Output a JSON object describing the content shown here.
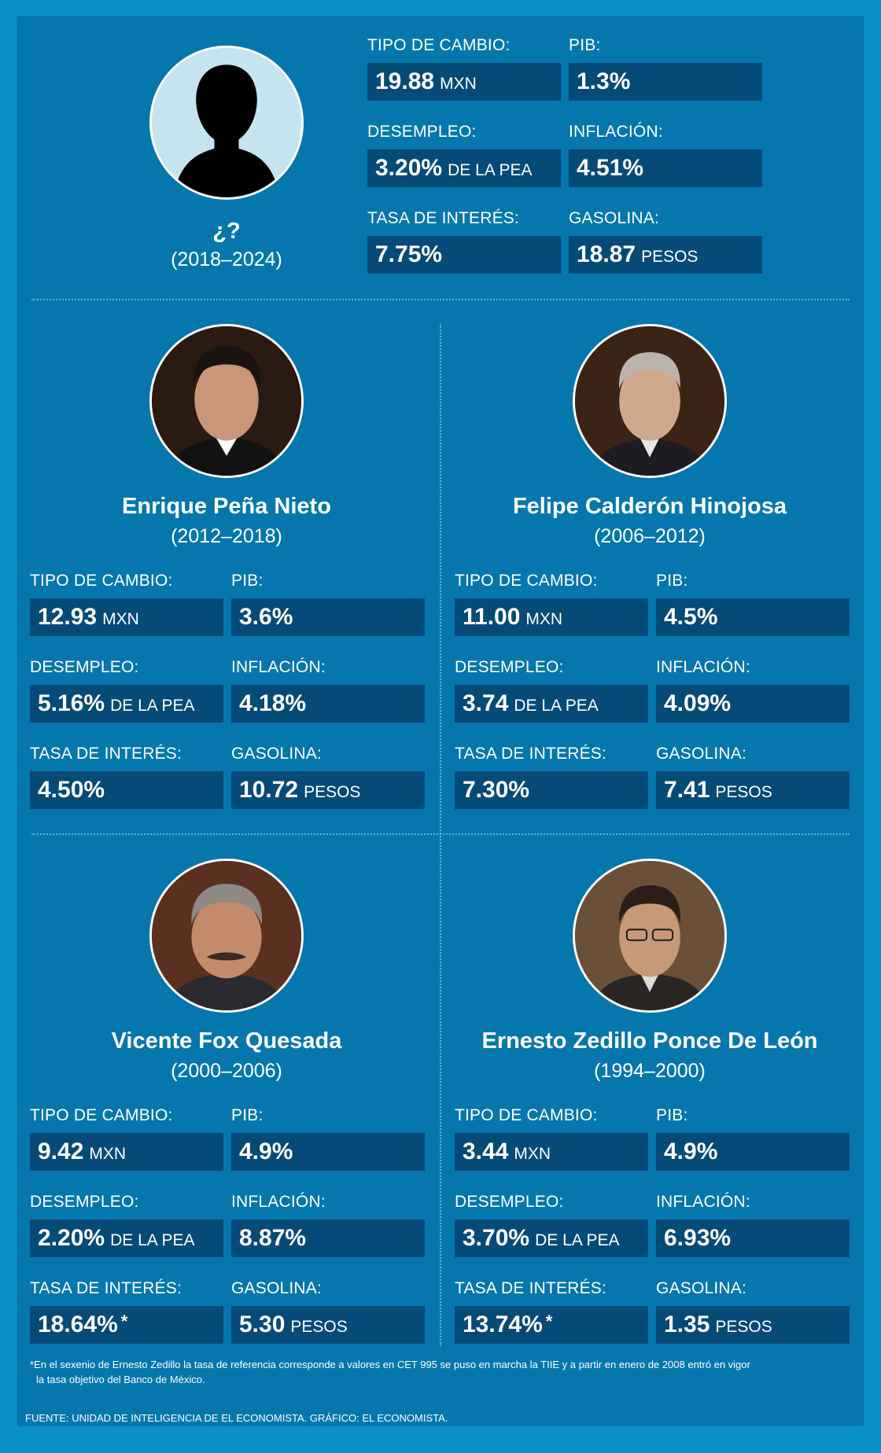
{
  "labels": {
    "exchange": "TIPO DE CAMBIO:",
    "gdp": "PIB:",
    "unemployment": "DESEMPLEO:",
    "inflation": "INFLACIÓN:",
    "interest": "TASA DE INTERÉS:",
    "gasoline": "GASOLINA:"
  },
  "units": {
    "mxn": "MXN",
    "pea": "DE LA PEA",
    "pesos": "PESOS"
  },
  "presidents": [
    {
      "name": "¿?",
      "years": "(2018–2024)",
      "exchange": "19.88",
      "gdp": "1.3%",
      "unemployment": "3.20%",
      "inflation": "4.51%",
      "interest": "7.75%",
      "gasoline": "18.87"
    },
    {
      "name": "Enrique Peña Nieto",
      "years": "(2012–2018)",
      "exchange": "12.93",
      "gdp": "3.6%",
      "unemployment": "5.16%",
      "inflation": "4.18%",
      "interest": "4.50%",
      "gasoline": "10.72"
    },
    {
      "name": "Felipe Calderón Hinojosa",
      "years": "(2006–2012)",
      "exchange": "11.00",
      "gdp": "4.5%",
      "unemployment": "3.74",
      "inflation": "4.09%",
      "interest": "7.30%",
      "gasoline": "7.41"
    },
    {
      "name": "Vicente Fox Quesada",
      "years": "(2000–2006)",
      "exchange": "9.42",
      "gdp": "4.9%",
      "unemployment": "2.20%",
      "inflation": "8.87%",
      "interest": "18.64%",
      "interest_mark": "*",
      "gasoline": "5.30"
    },
    {
      "name": "Ernesto Zedillo Ponce De León",
      "years": "(1994–2000)",
      "exchange": "3.44",
      "gdp": "4.9%",
      "unemployment": "3.70%",
      "inflation": "6.93%",
      "interest": "13.74%",
      "interest_mark": "*",
      "gasoline": "1.35"
    }
  ],
  "footnote_line1": "*En el sexenio de Ernesto Zedillo la tasa de referencia corresponde a valores en CET 995 se puso en marcha la TIIE y a partir en enero de 2008 entró en vigor",
  "footnote_line2": "la tasa objetivo del Banco de México.",
  "source": "FUENTE: UNIDAD DE INTELIGENCIA DE EL ECONOMISTA. GRÁFICO: EL ECONOMISTA.",
  "colors": {
    "background": "#0a8fc6",
    "panel": "#0577ad",
    "value_box": "#064a78",
    "silhouette_bg": "#c6e4f0"
  }
}
